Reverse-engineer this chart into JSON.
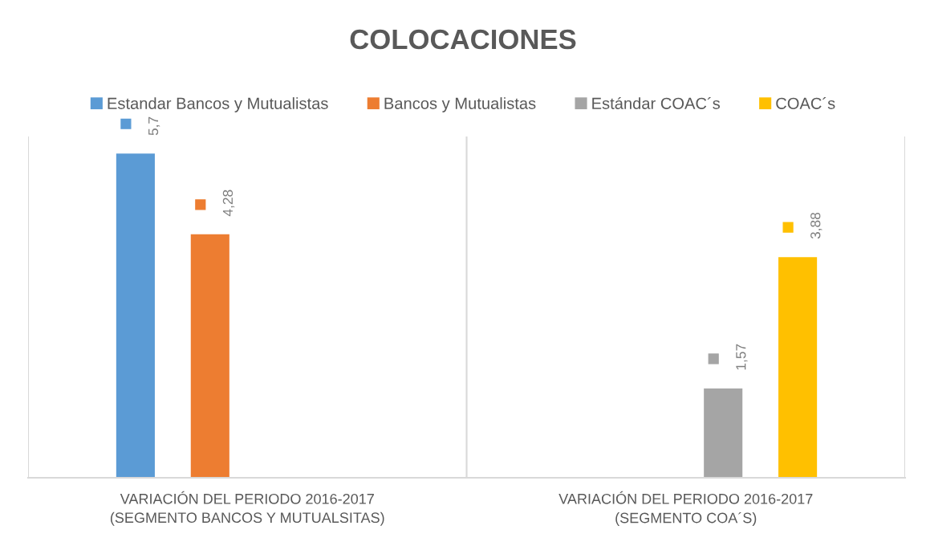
{
  "chart_data": {
    "type": "bar",
    "title": "COLOCACIONES",
    "categories": [
      "VARIACIÓN DEL PERIODO 2016-2017\n(SEGMENTO BANCOS Y MUTUALSITAS)",
      "VARIACIÓN DEL PERIODO 2016-2017\n(SEGMENTO COA´S)"
    ],
    "series": [
      {
        "name": "Estandar Bancos y Mutualistas",
        "color": "#5b9bd5",
        "values": [
          5.7,
          null
        ],
        "value_labels": [
          "5,7",
          null
        ]
      },
      {
        "name": "Bancos y Mutualistas",
        "color": "#ed7d31",
        "values": [
          4.28,
          null
        ],
        "value_labels": [
          "4,28",
          null
        ]
      },
      {
        "name": "Estándar COAC´s",
        "color": "#a5a5a5",
        "values": [
          null,
          1.57
        ],
        "value_labels": [
          null,
          "1,57"
        ]
      },
      {
        "name": "COAC´s",
        "color": "#ffc000",
        "values": [
          null,
          3.88
        ],
        "value_labels": [
          null,
          "3,88"
        ]
      }
    ],
    "ylim": [
      0,
      6
    ],
    "tick_labels": "x",
    "grid": "x",
    "legend": "top"
  }
}
